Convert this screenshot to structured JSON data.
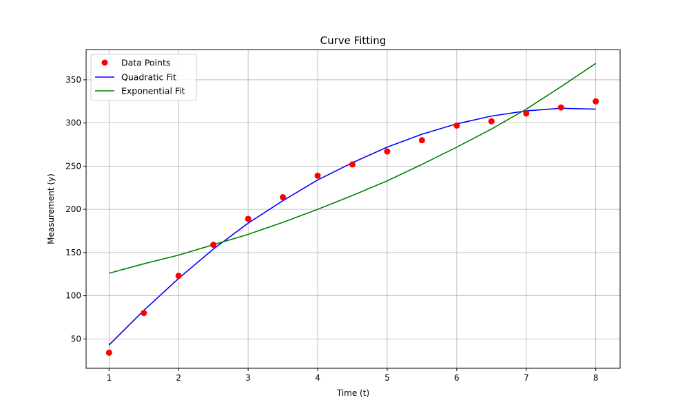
{
  "chart_data": {
    "type": "scatter",
    "title": "Curve Fitting",
    "xlabel": "Time (t)",
    "ylabel": "Measurement (y)",
    "xlim": [
      0.67,
      8.35
    ],
    "ylim": [
      16,
      385
    ],
    "xticks": [
      1,
      2,
      3,
      4,
      5,
      6,
      7,
      8
    ],
    "yticks": [
      50,
      100,
      150,
      200,
      250,
      300,
      350
    ],
    "grid": true,
    "legend_position": "top-left",
    "points": {
      "name": "Data Points",
      "color": "#ff0000",
      "x": [
        1,
        1.5,
        2,
        2.5,
        3,
        3.5,
        4,
        4.5,
        5,
        5.5,
        6,
        6.5,
        7,
        7.5,
        8
      ],
      "y": [
        34,
        80,
        123,
        159,
        189,
        214,
        239,
        252,
        267,
        280,
        297,
        302,
        311,
        318,
        325
      ]
    },
    "series": [
      {
        "name": "Quadratic Fit",
        "color": "#0000ff",
        "x": [
          1,
          1.5,
          2,
          2.5,
          3,
          3.5,
          4,
          4.5,
          5,
          5.5,
          6,
          6.5,
          7,
          7.5,
          8
        ],
        "y": [
          43,
          83,
          120,
          154,
          184,
          210,
          234,
          254,
          272,
          287,
          299,
          308,
          314,
          317,
          316
        ]
      },
      {
        "name": "Exponential Fit",
        "color": "#008000",
        "x": [
          1,
          1.5,
          2,
          2.5,
          3,
          3.5,
          4,
          4.5,
          5,
          5.5,
          6,
          6.5,
          7,
          7.5,
          8
        ],
        "y": [
          126,
          137,
          147,
          159,
          171,
          185,
          200,
          216,
          233,
          252,
          272,
          293,
          316,
          342,
          369
        ]
      }
    ]
  }
}
